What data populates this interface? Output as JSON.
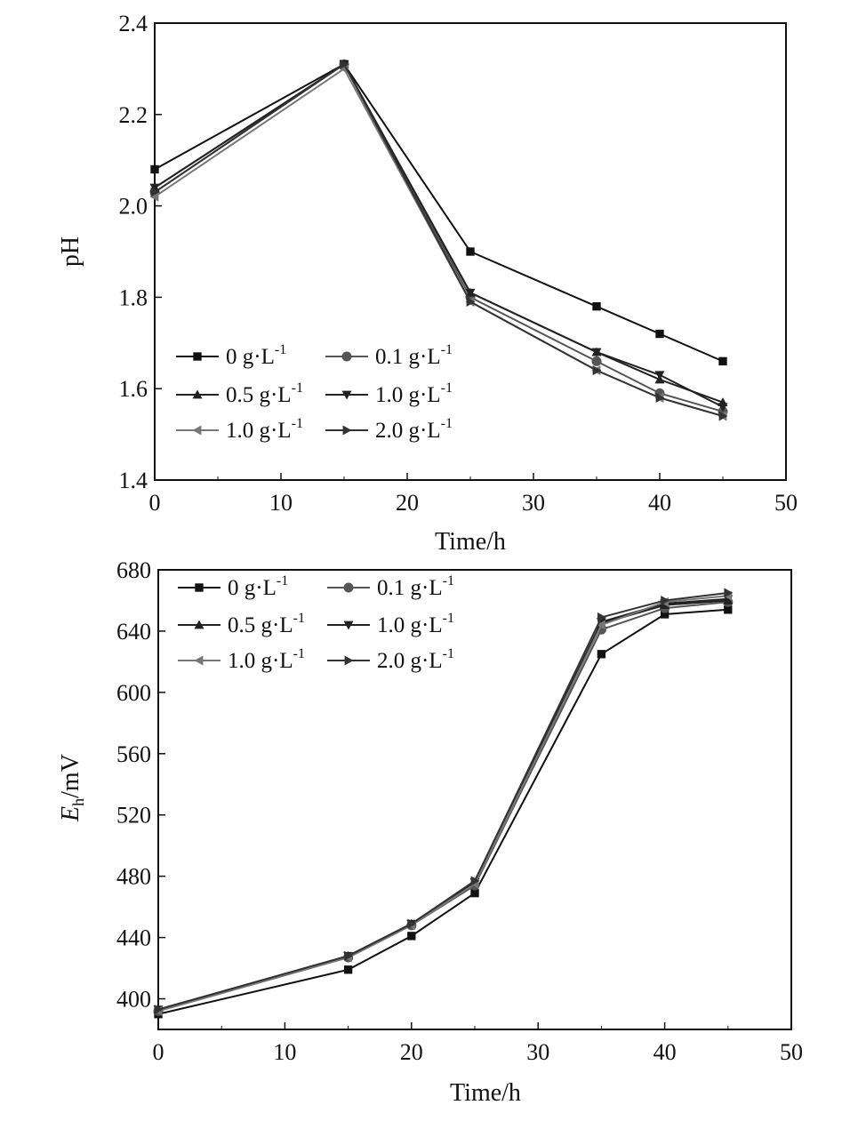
{
  "chart_data": [
    {
      "type": "line",
      "xlabel": "Time/h",
      "ylabel": "pH",
      "xlim": [
        0,
        50
      ],
      "ylim": [
        1.4,
        2.4
      ],
      "xticks": [
        "0",
        "10",
        "20",
        "30",
        "40",
        "50"
      ],
      "yticks": [
        "1.4",
        "1.6",
        "1.8",
        "2.0",
        "2.2",
        "2.4"
      ],
      "grid": false,
      "legend_position": "lower-left",
      "x": [
        0,
        15,
        25,
        35,
        40,
        45
      ],
      "series": [
        {
          "name": "0 g·L-1",
          "marker": "square",
          "color": "#111111",
          "values": [
            2.08,
            2.31,
            1.9,
            1.78,
            1.72,
            1.66
          ]
        },
        {
          "name": "0.1 g·L-1",
          "marker": "circle",
          "color": "#555555",
          "values": [
            2.03,
            2.31,
            1.8,
            1.66,
            1.59,
            1.55
          ]
        },
        {
          "name": "0.5 g·L-1",
          "marker": "triangle-up",
          "color": "#222222",
          "values": [
            2.04,
            2.31,
            1.81,
            1.68,
            1.62,
            1.57
          ]
        },
        {
          "name": "1.0 g·L-1",
          "marker": "triangle-down",
          "color": "#222222",
          "values": [
            2.04,
            2.31,
            1.81,
            1.68,
            1.63,
            1.56
          ]
        },
        {
          "name": "1.0 g·L-1",
          "marker": "triangle-left",
          "color": "#777777",
          "values": [
            2.02,
            2.3,
            1.79,
            1.64,
            1.58,
            1.54
          ]
        },
        {
          "name": "2.0 g·L-1",
          "marker": "triangle-right",
          "color": "#333333",
          "values": [
            2.03,
            2.31,
            1.79,
            1.64,
            1.58,
            1.54
          ]
        }
      ]
    },
    {
      "type": "line",
      "xlabel": "Time/h",
      "ylabel": "Eh/mV",
      "ylabel_main": "E",
      "ylabel_sub": "h",
      "ylabel_unit": "/mV",
      "xlim": [
        0,
        50
      ],
      "ylim": [
        380,
        680
      ],
      "xticks": [
        "0",
        "10",
        "20",
        "30",
        "40",
        "50"
      ],
      "yticks": [
        "400",
        "440",
        "480",
        "520",
        "560",
        "600",
        "640",
        "680"
      ],
      "grid": false,
      "legend_position": "top-left",
      "x": [
        0,
        15,
        20,
        25,
        35,
        40,
        45
      ],
      "series": [
        {
          "name": "0 g·L-1",
          "marker": "square",
          "color": "#111111",
          "values": [
            390,
            419,
            441,
            469,
            625,
            651,
            654
          ]
        },
        {
          "name": "0.1 g·L-1",
          "marker": "circle",
          "color": "#555555",
          "values": [
            392,
            427,
            448,
            474,
            641,
            655,
            659
          ]
        },
        {
          "name": "0.5 g·L-1",
          "marker": "triangle-up",
          "color": "#222222",
          "values": [
            393,
            428,
            449,
            476,
            645,
            657,
            660
          ]
        },
        {
          "name": "1.0 g·L-1",
          "marker": "triangle-down",
          "color": "#222222",
          "values": [
            393,
            428,
            449,
            476,
            646,
            658,
            661
          ]
        },
        {
          "name": "1.0 g·L-1",
          "marker": "triangle-left",
          "color": "#777777",
          "values": [
            392,
            427,
            448,
            475,
            644,
            659,
            663
          ]
        },
        {
          "name": "2.0 g·L-1",
          "marker": "triangle-right",
          "color": "#333333",
          "values": [
            393,
            428,
            449,
            477,
            649,
            660,
            665
          ]
        }
      ]
    }
  ]
}
